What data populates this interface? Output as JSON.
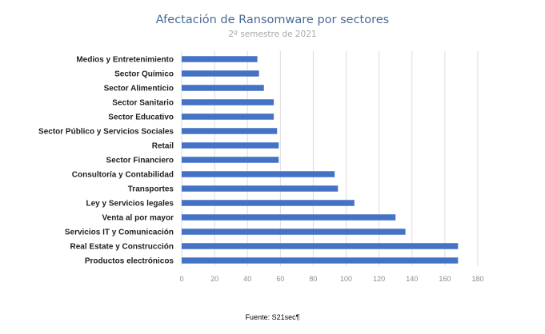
{
  "chart_data": {
    "type": "bar",
    "orientation": "horizontal",
    "title": "Afectación de Ransomware por sectores",
    "subtitle": "2º semestre de 2021",
    "categories": [
      "Medios y Entretenimiento",
      "Sector Químico",
      "Sector Alimenticio",
      "Sector Sanitario",
      "Sector Educativo",
      "Sector Público y Servicios Sociales",
      "Retail",
      "Sector Financiero",
      "Consultoría y Contabilidad",
      "Transportes",
      "Ley y Servicios legales",
      "Venta al por mayor",
      "Servicios IT y Comunicación",
      "Real Estate y Construcción",
      "Productos electrónicos"
    ],
    "values": [
      46,
      47,
      50,
      56,
      56,
      58,
      59,
      59,
      93,
      95,
      105,
      130,
      136,
      168,
      168
    ],
    "xlim": [
      0,
      180
    ],
    "xticks": [
      0,
      20,
      40,
      60,
      80,
      100,
      120,
      140,
      160,
      180
    ],
    "grid": true,
    "bar_color": "#4472c4",
    "source": "Fuente: S21sec¶"
  }
}
